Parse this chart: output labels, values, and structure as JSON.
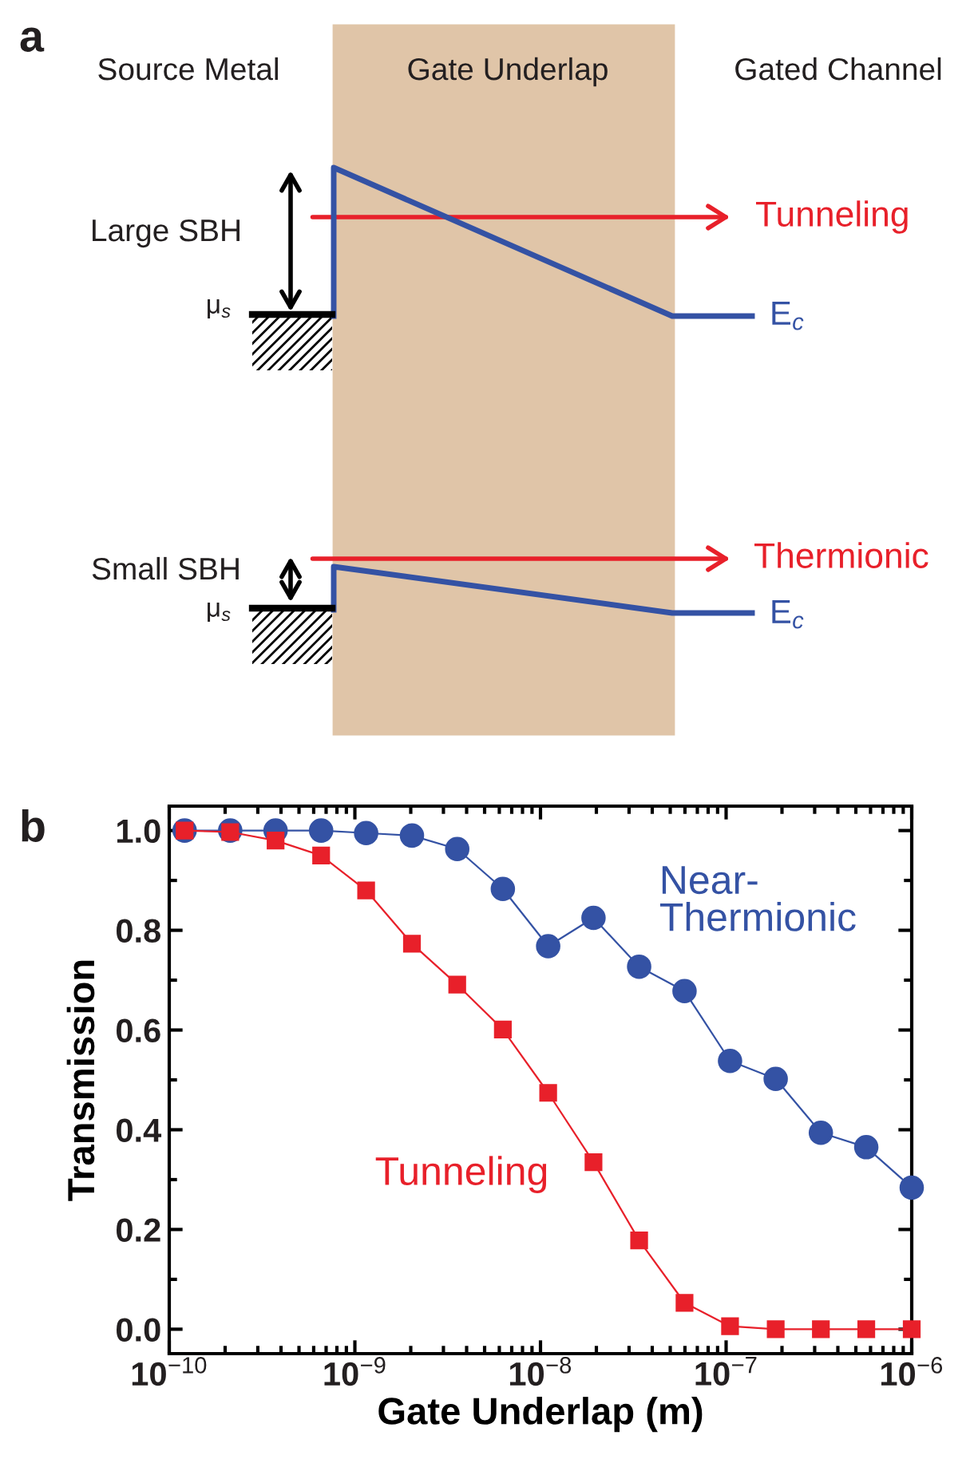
{
  "chart_data": [
    {
      "type": "other",
      "annotations": [
        "a",
        "Source Metal",
        "Gate Underlap",
        "Gated Channel",
        "Large SBH",
        "μ$_{s}$",
        "Tunneling",
        "E$_{c}$",
        "Small SBH",
        "μ$_{s}$",
        "Thermionic",
        "E$_{c}$"
      ]
    },
    {
      "type": "line",
      "xlabel": "Gate Underlap (m)",
      "ylabel": "Transmission",
      "annotations": [
        "b"
      ],
      "log": "x",
      "grid": false,
      "legend": false,
      "xlim": [
        1e-10,
        1e-06
      ],
      "ylim": [
        -0.049,
        1.049
      ],
      "xticks": [
        {
          "value": 1e-10,
          "label": "10$^{−10}$"
        },
        {
          "value": 1e-09,
          "label": "10$^{−9}$"
        },
        {
          "value": 1e-08,
          "label": "10$^{−8}$"
        },
        {
          "value": 1e-07,
          "label": "10$^{−7}$"
        },
        {
          "value": 1e-06,
          "label": "10$^{−6}$"
        }
      ],
      "yticks": [
        {
          "value": 0,
          "label": "0.0"
        },
        {
          "value": 0.2,
          "label": "0.2"
        },
        {
          "value": 0.4,
          "label": "0.4"
        },
        {
          "value": 0.6,
          "label": "0.6"
        },
        {
          "value": 0.8,
          "label": "0.8"
        },
        {
          "value": 1,
          "label": "1.0"
        }
      ],
      "x": [
        1.21e-10,
        2.13e-10,
        3.74e-10,
        6.58e-10,
        1.15e-09,
        2.03e-09,
        3.56e-09,
        6.27e-09,
        1.1e-08,
        1.93e-08,
        3.4e-08,
        5.97e-08,
        1.05e-07,
        1.85e-07,
        3.24e-07,
        5.69e-07,
        1e-06
      ],
      "series": [
        {
          "name": "Near-\nThermionic",
          "color": "#3452a4",
          "marker": "circle",
          "values": [
            1.0,
            1.0,
            1.0,
            1.0,
            0.995,
            0.99,
            0.963,
            0.883,
            0.768,
            0.825,
            0.727,
            0.678,
            0.538,
            0.502,
            0.394,
            0.365,
            0.284
          ]
        },
        {
          "name": "Tunneling",
          "color": "#e8202a",
          "marker": "square",
          "values": [
            1.0,
            0.997,
            0.98,
            0.95,
            0.88,
            0.773,
            0.691,
            0.601,
            0.474,
            0.335,
            0.178,
            0.053,
            0.006,
            0.0,
            0.0,
            0.0,
            0.0
          ]
        }
      ]
    }
  ]
}
